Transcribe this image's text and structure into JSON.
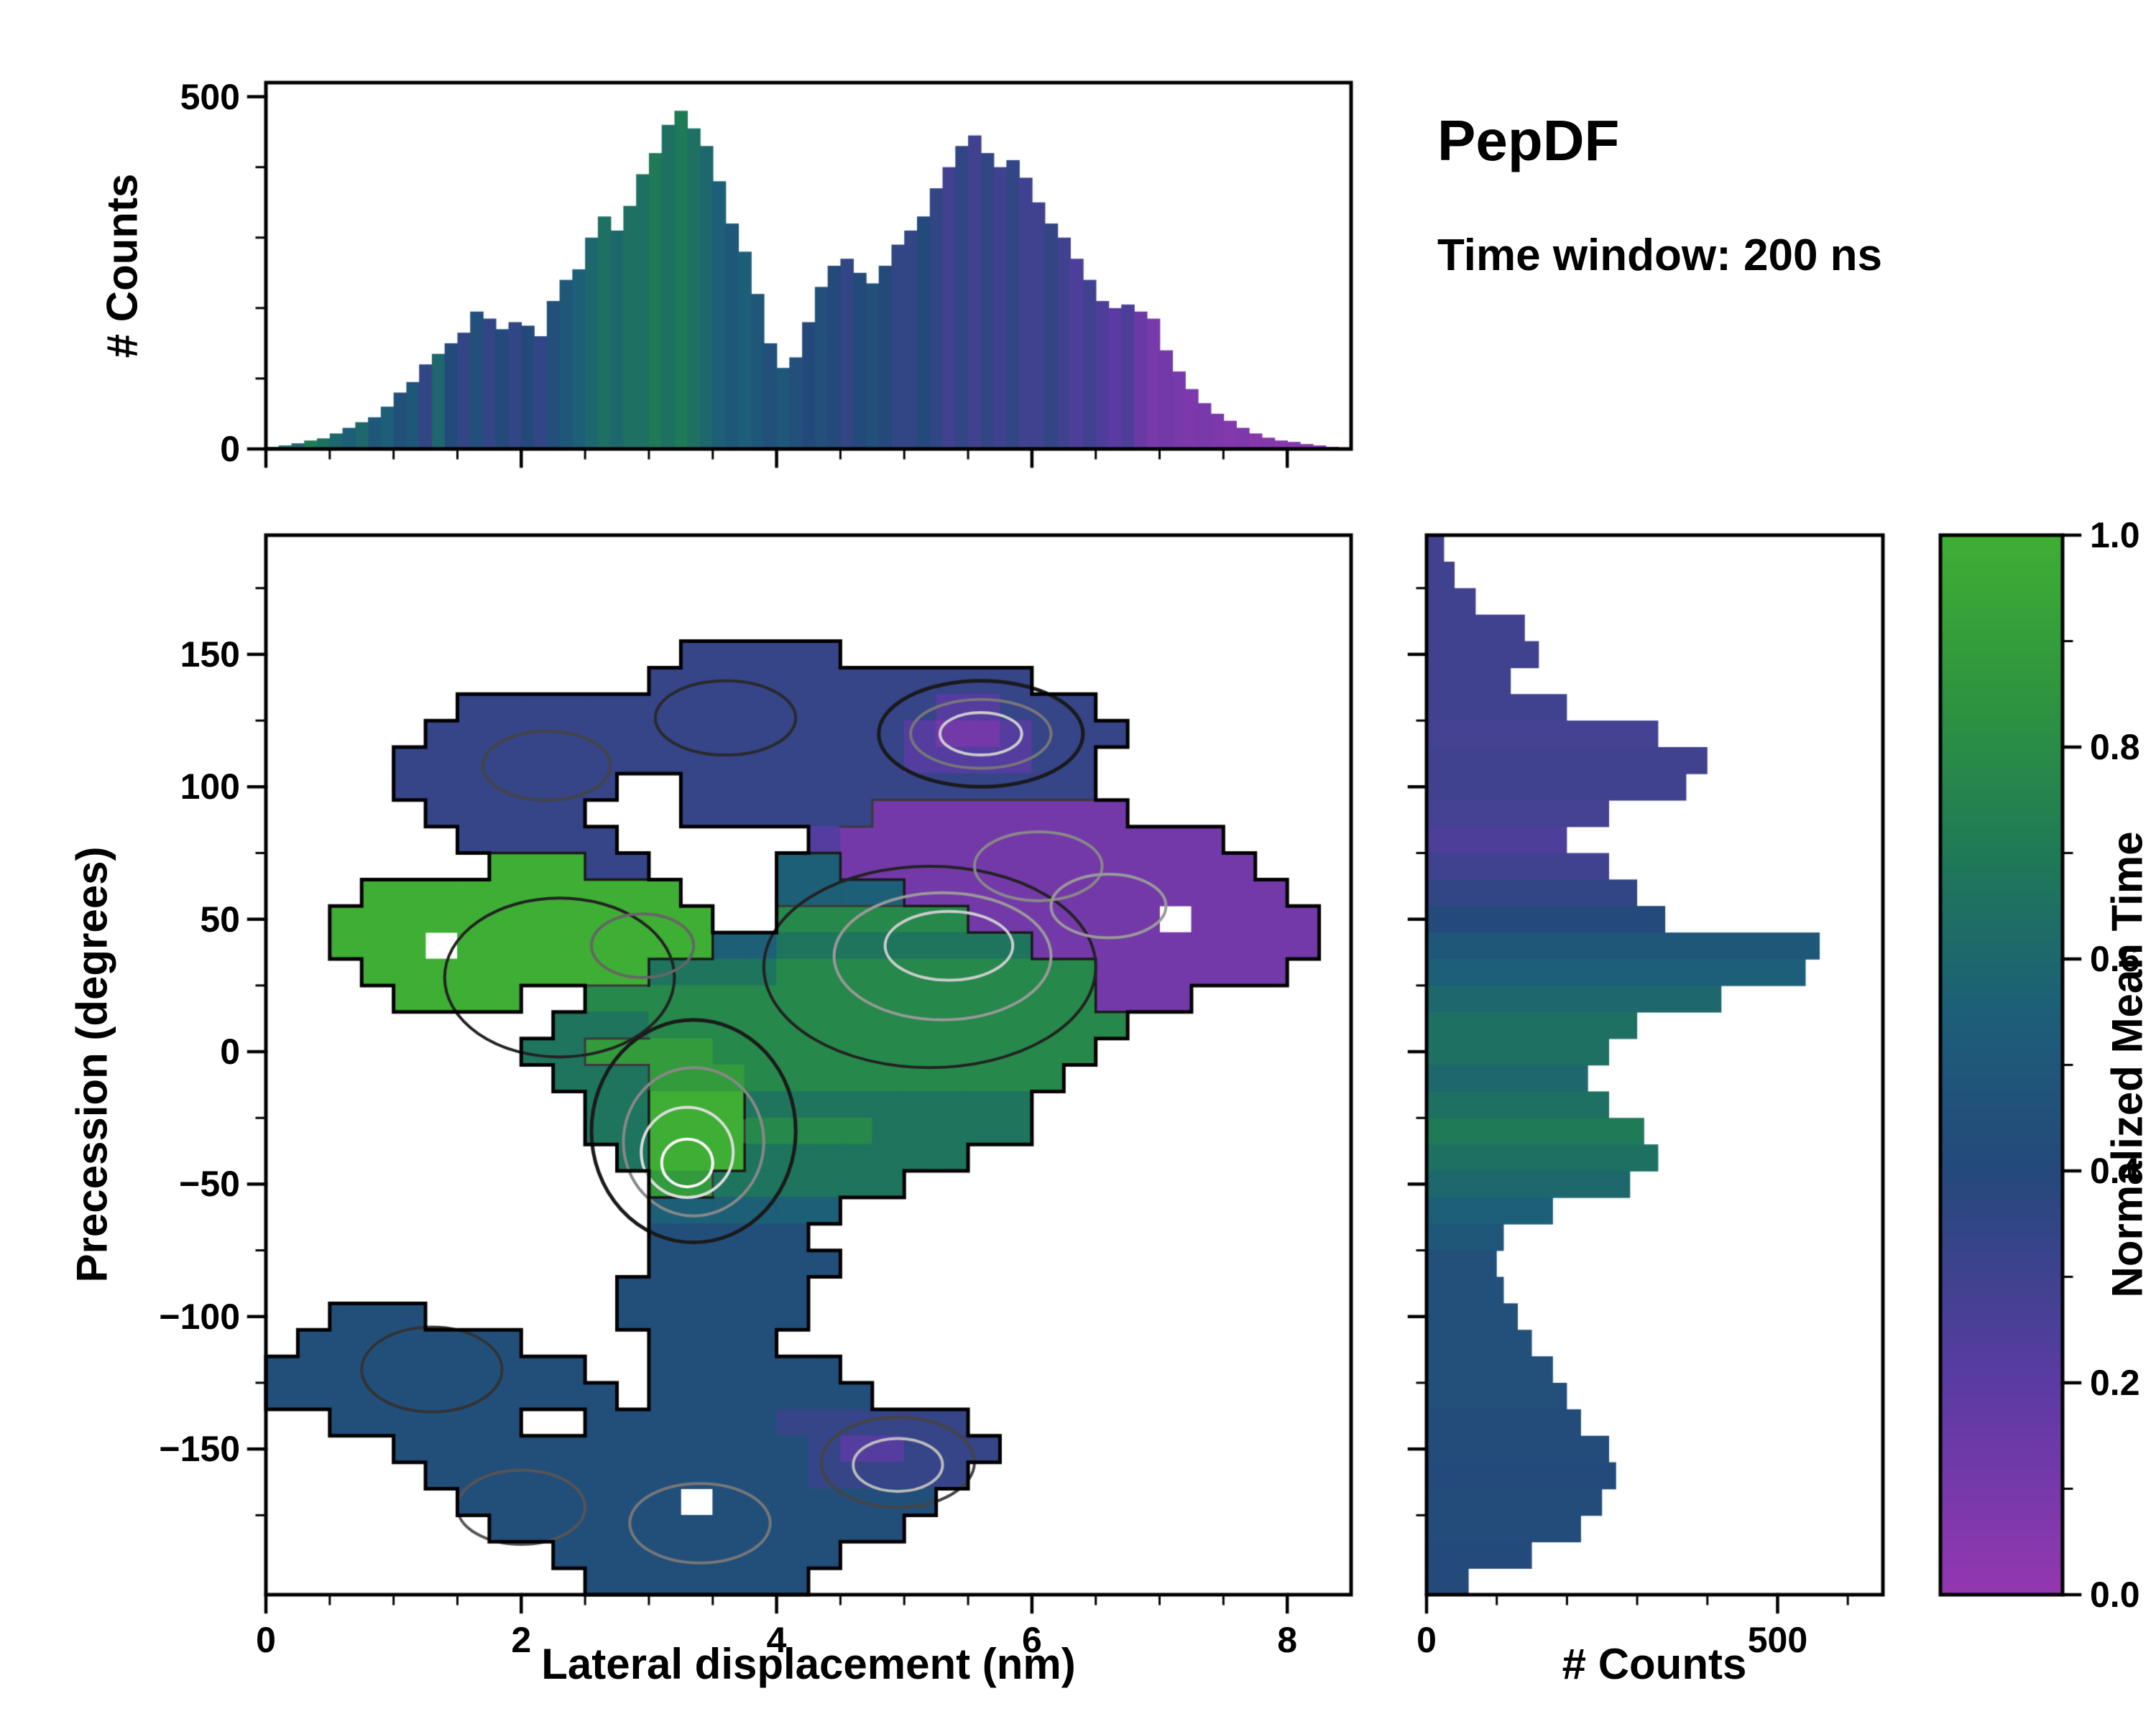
{
  "title": {
    "name": "PepDF",
    "subtitle": "Time window: 200 ns"
  },
  "labels": {
    "top_ylabel": "# Counts",
    "main_xlabel": "Lateral displacement (nm)",
    "main_ylabel": "Precession (degrees)",
    "right_xlabel": "# Counts",
    "colorbar_label": "Normalized Mean Time"
  },
  "colormap": {
    "label": "Normalized Mean Time",
    "stops": [
      {
        "t": 0.0,
        "color": "#9437b0"
      },
      {
        "t": 0.2,
        "color": "#5b3ba3"
      },
      {
        "t": 0.4,
        "color": "#24497b"
      },
      {
        "t": 0.55,
        "color": "#1d5e78"
      },
      {
        "t": 0.7,
        "color": "#1f7a57"
      },
      {
        "t": 0.85,
        "color": "#2f953f"
      },
      {
        "t": 1.0,
        "color": "#3fae34"
      }
    ]
  },
  "chart_data": [
    {
      "id": "top_histogram",
      "type": "bar",
      "orientation": "vertical",
      "ylabel": "# Counts",
      "xlim": [
        0,
        8.5
      ],
      "ylim": [
        0,
        520
      ],
      "yticks": [
        0,
        500
      ],
      "ytick_labels": [
        "0",
        "500"
      ],
      "yticks_minor": [
        100,
        200,
        300,
        400
      ],
      "bin_width": 0.1,
      "x_start": 0.0,
      "counts": [
        3,
        5,
        8,
        12,
        15,
        22,
        30,
        38,
        45,
        60,
        80,
        95,
        120,
        135,
        150,
        165,
        195,
        185,
        170,
        180,
        175,
        160,
        210,
        240,
        255,
        300,
        330,
        310,
        345,
        390,
        420,
        460,
        480,
        455,
        430,
        380,
        320,
        280,
        220,
        150,
        115,
        130,
        180,
        230,
        260,
        270,
        250,
        235,
        260,
        290,
        310,
        330,
        370,
        400,
        430,
        445,
        420,
        400,
        410,
        385,
        350,
        320,
        300,
        270,
        240,
        210,
        200,
        205,
        195,
        185,
        140,
        110,
        85,
        65,
        50,
        40,
        30,
        22,
        16,
        12,
        10,
        7,
        5,
        3,
        2
      ],
      "mean_time": [
        0.7,
        0.65,
        0.6,
        0.7,
        0.65,
        0.6,
        0.55,
        0.6,
        0.5,
        0.55,
        0.45,
        0.5,
        0.35,
        0.6,
        0.4,
        0.35,
        0.45,
        0.35,
        0.4,
        0.35,
        0.4,
        0.35,
        0.45,
        0.5,
        0.55,
        0.6,
        0.65,
        0.6,
        0.65,
        0.65,
        0.7,
        0.65,
        0.7,
        0.65,
        0.6,
        0.55,
        0.5,
        0.55,
        0.5,
        0.45,
        0.5,
        0.45,
        0.4,
        0.45,
        0.4,
        0.35,
        0.4,
        0.45,
        0.4,
        0.35,
        0.35,
        0.4,
        0.35,
        0.3,
        0.35,
        0.3,
        0.35,
        0.3,
        0.35,
        0.3,
        0.3,
        0.35,
        0.3,
        0.25,
        0.3,
        0.25,
        0.2,
        0.25,
        0.15,
        0.1,
        0.12,
        0.1,
        0.08,
        0.1,
        0.08,
        0.06,
        0.08,
        0.05,
        0.06,
        0.05,
        0.05,
        0.04,
        0.05,
        0.04,
        0.05
      ]
    },
    {
      "id": "main_map",
      "type": "heatmap",
      "xlabel": "Lateral displacement (nm)",
      "ylabel": "Precession (degrees)",
      "value_label": "Normalized Mean Time",
      "xlim": [
        0,
        8.5
      ],
      "ylim": [
        -205,
        195
      ],
      "xticks": [
        0,
        2,
        4,
        6,
        8
      ],
      "xtick_labels": [
        "0",
        "2",
        "4",
        "6",
        "8"
      ],
      "xticks_minor": [
        0.5,
        1,
        1.5,
        2.5,
        3,
        3.5,
        4.5,
        5,
        5.5,
        6.5,
        7,
        7.5
      ],
      "yticks": [
        150,
        100,
        50,
        0,
        -50,
        -100,
        -150
      ],
      "ytick_labels": [
        "150",
        "100",
        "50",
        "0",
        "−50",
        "−100",
        "−150"
      ],
      "yticks_minor": [
        175,
        125,
        75,
        25,
        -25,
        -75,
        -125,
        -175
      ],
      "grid_encoding": "40 rows top-to-bottom (y bin centers 190 to -200 in 10 degree steps), 34 columns left-to-right (x bins 0 to 8.5 nm in 0.25 nm steps); '.' = empty, ',' = small interior hole, digit d = normalized mean time d/9",
      "grid": [
        "..................................",
        "..................................",
        "..................................",
        "..................................",
        ".............33333................",
        "............333333333333..........",
        "......33333333333333322333........",
        ".....3333333333333332112333.......",
        "....3333333333333333222233........",
        "....3333333..3333333333333........",
        ".....33333...33333311111111.......",
        "......33333......2111111111111....",
        ".......99933....551111111111111...",
        "...9999999999...5555111111111111..",
        "..999999999999..777777111111,1111.",
        "..999,999999995566666666111111111.",
        "...99999999966667777777777111111..",
        "....9999..7777777777777777111.....",
        ".........666777777777777777.......",
        "........668888777777777777........",
        ".........6668887777777777.........",
        "..........66999666666666..........",
        "..........66999777766666..........",
        "...........69996666666............",
        "............88666666..............",
        "............555555................",
        "............44444.................",
        "............444444................",
        "...........444444.................",
        "..444......444444.................",
        ".4444444....4444..................",
        "4444444444..444444................",
        "44444444444.4444444...............",
        "..444444..444444333333............",
        "....4444444444444322333...........",
        ".....44444444444433333............",
        "......4444444,4444444.............",
        ".......4444444444444..............",
        ".........444444444................",
        "..........4444444................."
      ],
      "contour_rings": [
        {
          "x": 5.6,
          "y": 120,
          "rx": 0.8,
          "ry": 20,
          "color": "#1a1a1a",
          "lw": 5
        },
        {
          "x": 5.6,
          "y": 120,
          "rx": 0.55,
          "ry": 13,
          "color": "#777777",
          "lw": 4
        },
        {
          "x": 5.6,
          "y": 120,
          "rx": 0.32,
          "ry": 8,
          "color": "#cccccc",
          "lw": 4
        },
        {
          "x": 3.35,
          "y": -30,
          "rx": 0.8,
          "ry": 42,
          "color": "#1a1a1a",
          "lw": 5
        },
        {
          "x": 3.35,
          "y": -34,
          "rx": 0.55,
          "ry": 28,
          "color": "#888888",
          "lw": 4
        },
        {
          "x": 3.3,
          "y": -38,
          "rx": 0.36,
          "ry": 17,
          "color": "#dddddd",
          "lw": 4
        },
        {
          "x": 3.3,
          "y": -42,
          "rx": 0.2,
          "ry": 9,
          "color": "#ffffff",
          "lw": 4
        },
        {
          "x": 5.2,
          "y": 32,
          "rx": 1.3,
          "ry": 38,
          "color": "#222222",
          "lw": 4
        },
        {
          "x": 5.3,
          "y": 36,
          "rx": 0.85,
          "ry": 24,
          "color": "#999999",
          "lw": 4
        },
        {
          "x": 5.35,
          "y": 40,
          "rx": 0.5,
          "ry": 13,
          "color": "#cccccc",
          "lw": 4
        },
        {
          "x": 6.05,
          "y": 70,
          "rx": 0.5,
          "ry": 13,
          "color": "#888888",
          "lw": 4
        },
        {
          "x": 6.6,
          "y": 55,
          "rx": 0.45,
          "ry": 12,
          "color": "#999999",
          "lw": 4
        },
        {
          "x": 2.3,
          "y": 28,
          "rx": 0.9,
          "ry": 30,
          "color": "#222222",
          "lw": 4
        },
        {
          "x": 2.95,
          "y": 40,
          "rx": 0.4,
          "ry": 12,
          "color": "#666666",
          "lw": 4
        },
        {
          "x": 4.95,
          "y": -155,
          "rx": 0.6,
          "ry": 17,
          "color": "#444444",
          "lw": 4
        },
        {
          "x": 4.95,
          "y": -156,
          "rx": 0.35,
          "ry": 10,
          "color": "#bbbbbb",
          "lw": 4
        },
        {
          "x": 2.0,
          "y": -172,
          "rx": 0.5,
          "ry": 14,
          "color": "#555555",
          "lw": 4
        },
        {
          "x": 3.4,
          "y": -178,
          "rx": 0.55,
          "ry": 15,
          "color": "#777777",
          "lw": 4
        },
        {
          "x": 1.3,
          "y": -120,
          "rx": 0.55,
          "ry": 16,
          "color": "#333333",
          "lw": 4
        },
        {
          "x": 2.2,
          "y": 108,
          "rx": 0.5,
          "ry": 13,
          "color": "#444444",
          "lw": 4
        },
        {
          "x": 3.6,
          "y": 126,
          "rx": 0.55,
          "ry": 14,
          "color": "#2a2a2a",
          "lw": 4
        }
      ]
    },
    {
      "id": "right_histogram",
      "type": "bar",
      "orientation": "horizontal",
      "xlabel": "# Counts",
      "xlim": [
        0,
        650
      ],
      "ylim": [
        -205,
        195
      ],
      "xticks": [
        0,
        500
      ],
      "xtick_labels": [
        "0",
        "500"
      ],
      "xticks_minor": [
        100,
        200,
        300,
        400,
        600
      ],
      "bin_height": 10,
      "y_center_first": 190,
      "y_step": -10,
      "counts": [
        25,
        40,
        70,
        140,
        160,
        120,
        200,
        330,
        400,
        370,
        260,
        200,
        260,
        300,
        340,
        560,
        540,
        420,
        300,
        260,
        230,
        260,
        310,
        330,
        290,
        180,
        110,
        100,
        110,
        130,
        150,
        180,
        200,
        220,
        260,
        270,
        250,
        220,
        150,
        60
      ],
      "mean_time": [
        0.3,
        0.3,
        0.3,
        0.3,
        0.3,
        0.3,
        0.3,
        0.28,
        0.3,
        0.3,
        0.28,
        0.25,
        0.3,
        0.35,
        0.4,
        0.5,
        0.55,
        0.6,
        0.65,
        0.65,
        0.6,
        0.65,
        0.7,
        0.65,
        0.6,
        0.55,
        0.5,
        0.45,
        0.45,
        0.45,
        0.45,
        0.45,
        0.45,
        0.42,
        0.42,
        0.4,
        0.42,
        0.42,
        0.4,
        0.4
      ]
    },
    {
      "id": "colorbar",
      "type": "colorbar",
      "label": "Normalized Mean Time",
      "lim": [
        0.0,
        1.0
      ],
      "ticks": [
        0.0,
        0.2,
        0.4,
        0.6,
        0.8,
        1.0
      ],
      "tick_labels": [
        "0.0",
        "0.2",
        "0.4",
        "0.6",
        "0.8",
        "1.0"
      ],
      "ticks_minor": [
        0.1,
        0.3,
        0.5,
        0.7,
        0.9
      ]
    }
  ]
}
